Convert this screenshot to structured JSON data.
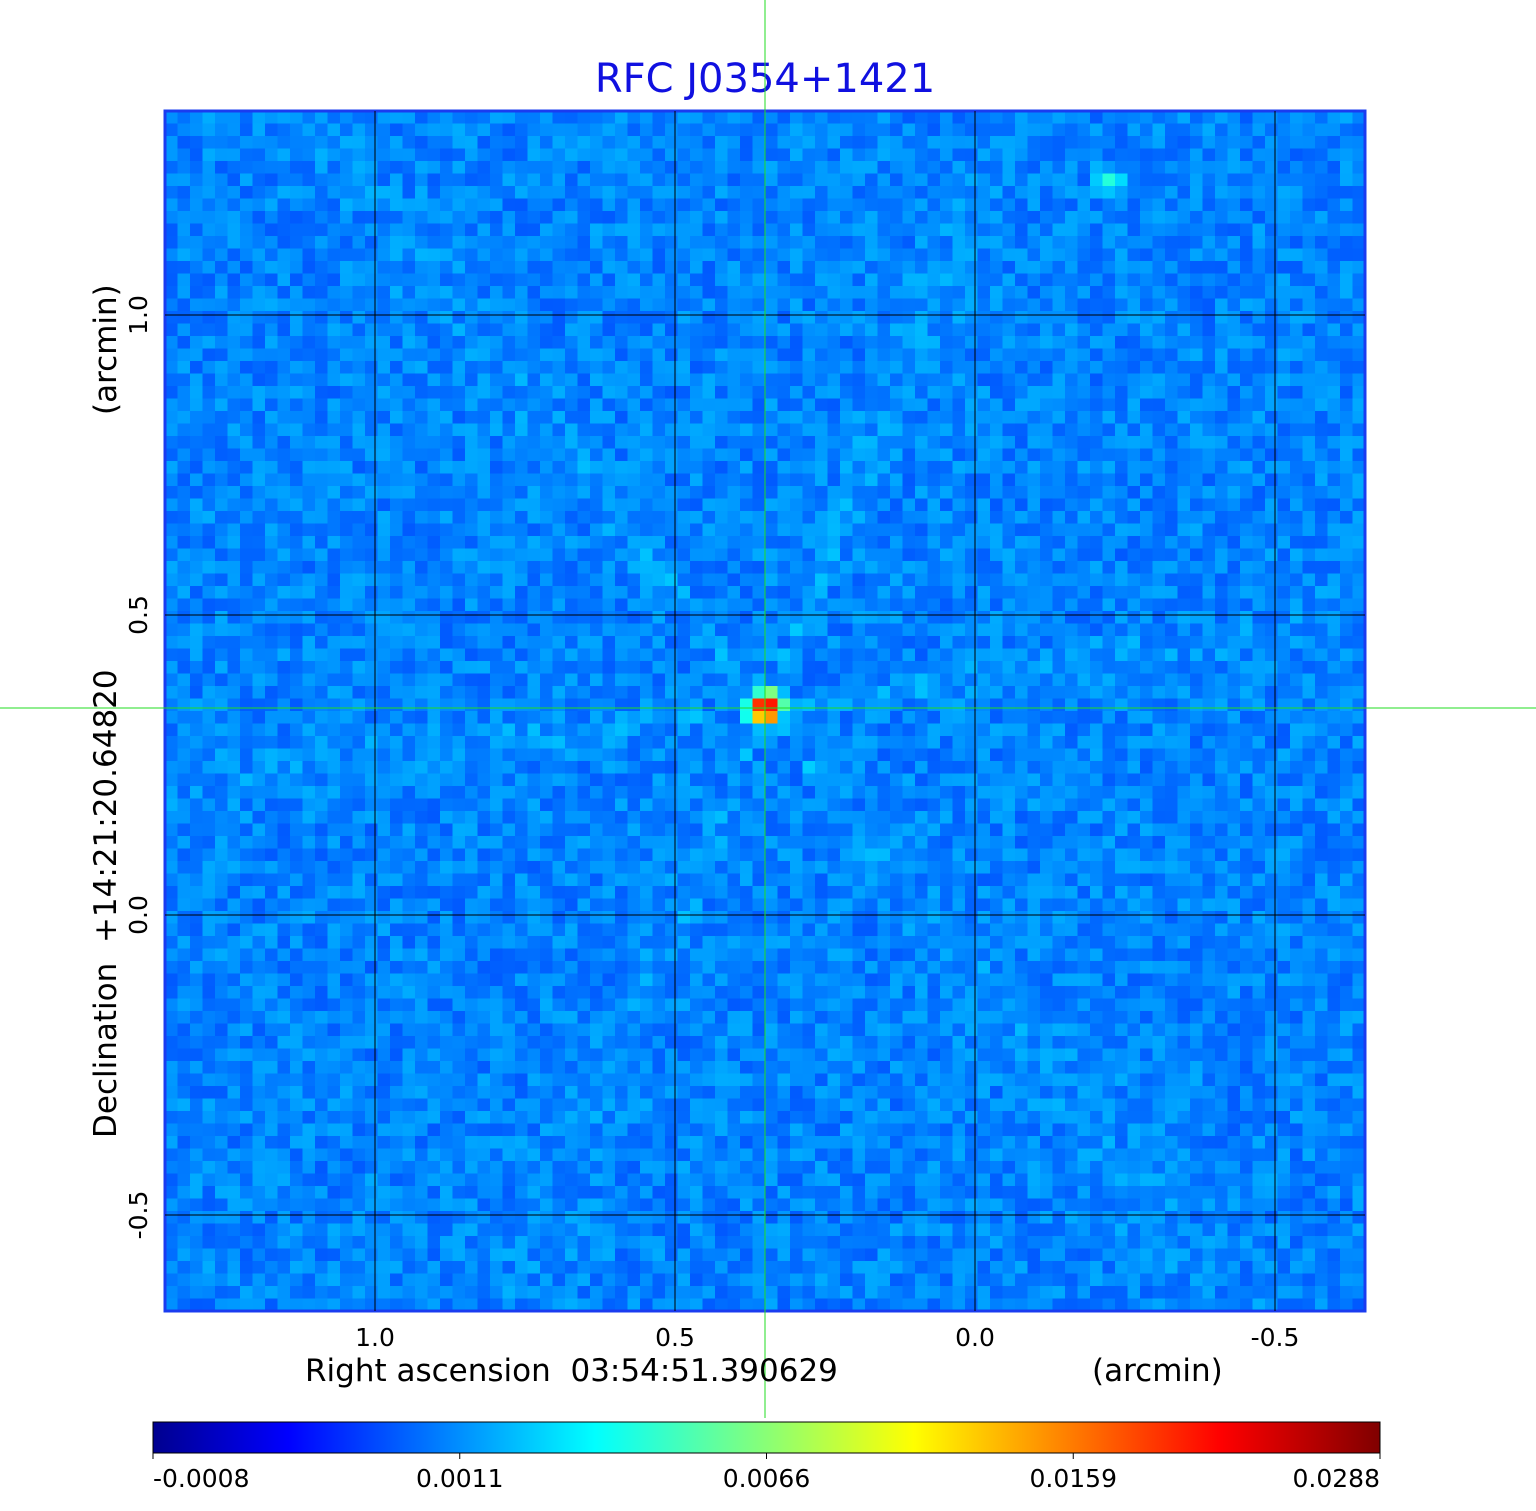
{
  "chart_data": {
    "type": "heatmap",
    "title": "RFC J0354+1421",
    "colors": {
      "title": "#1010e0",
      "grid": "#000000",
      "crosshair": "#22dd22",
      "frame": "#1a3cf0",
      "background": "#1f5ae8"
    },
    "xaxis": {
      "label_left": "Right ascension  03:54:51.390629",
      "label_right": "(arcmin)",
      "range": [
        1.35,
        -0.65
      ],
      "ticks": [
        1.0,
        0.5,
        0.0,
        -0.5
      ],
      "tick_labels": [
        "1.0",
        "0.5",
        "0.0",
        "-0.5"
      ],
      "direction": "decreasing-to-right"
    },
    "yaxis": {
      "label_left": "Declination  +14:21:20.64820",
      "label_right": "(arcmin)",
      "range": [
        -0.66,
        1.34
      ],
      "ticks": [
        -0.5,
        0.0,
        0.5,
        1.0
      ],
      "tick_labels": [
        "-0.5",
        "0.0",
        "0.5",
        "1.0"
      ]
    },
    "grid": true,
    "crosshair": {
      "x": 0.35,
      "y": 0.345
    },
    "peak_source": {
      "x": 0.35,
      "y": 0.345,
      "value": 0.0288
    },
    "secondary_source": {
      "x": -0.226,
      "y": 1.22,
      "value": 0.0035
    },
    "colorbar": {
      "placement": "bottom",
      "colormap": "jet",
      "range": [
        -0.0008,
        0.0288
      ],
      "ticks": [
        "-0.0008",
        "0.0011",
        "0.0066",
        "0.0159",
        "0.0288"
      ]
    }
  }
}
